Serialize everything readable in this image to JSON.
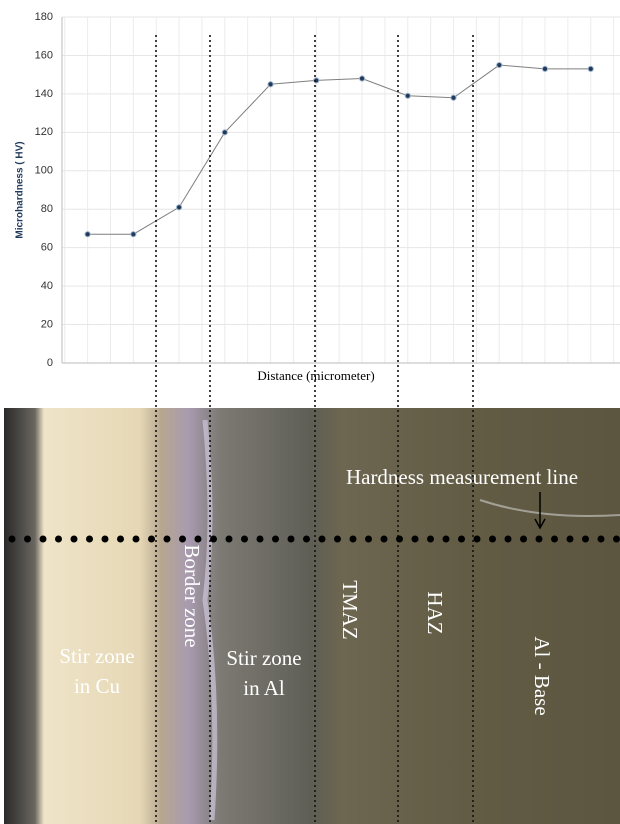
{
  "chart_data": {
    "type": "line",
    "categories": [
      null,
      null,
      null,
      null,
      null,
      null,
      null,
      null,
      null,
      null,
      null,
      null
    ],
    "values": [
      67,
      67,
      81,
      120,
      145,
      147,
      148,
      139,
      138,
      155,
      153,
      153
    ],
    "color": "#7f7f7f",
    "ylim": [
      0,
      180
    ],
    "yticks": [
      0,
      20,
      40,
      60,
      80,
      100,
      120,
      140,
      160,
      180
    ],
    "grid": true,
    "x_label": "Distance (micrometer)",
    "y_label": "Microhardness ( HV)"
  },
  "micrograph": {
    "measurement_label": "Hardness measurement line",
    "zones": {
      "cu": [
        "Stir zone",
        "in Cu"
      ],
      "border": "Border zone",
      "al": [
        "Stir zone",
        "in Al"
      ],
      "tmaz": "TMAZ",
      "haz": "HAZ",
      "base": "Al - Base"
    }
  }
}
